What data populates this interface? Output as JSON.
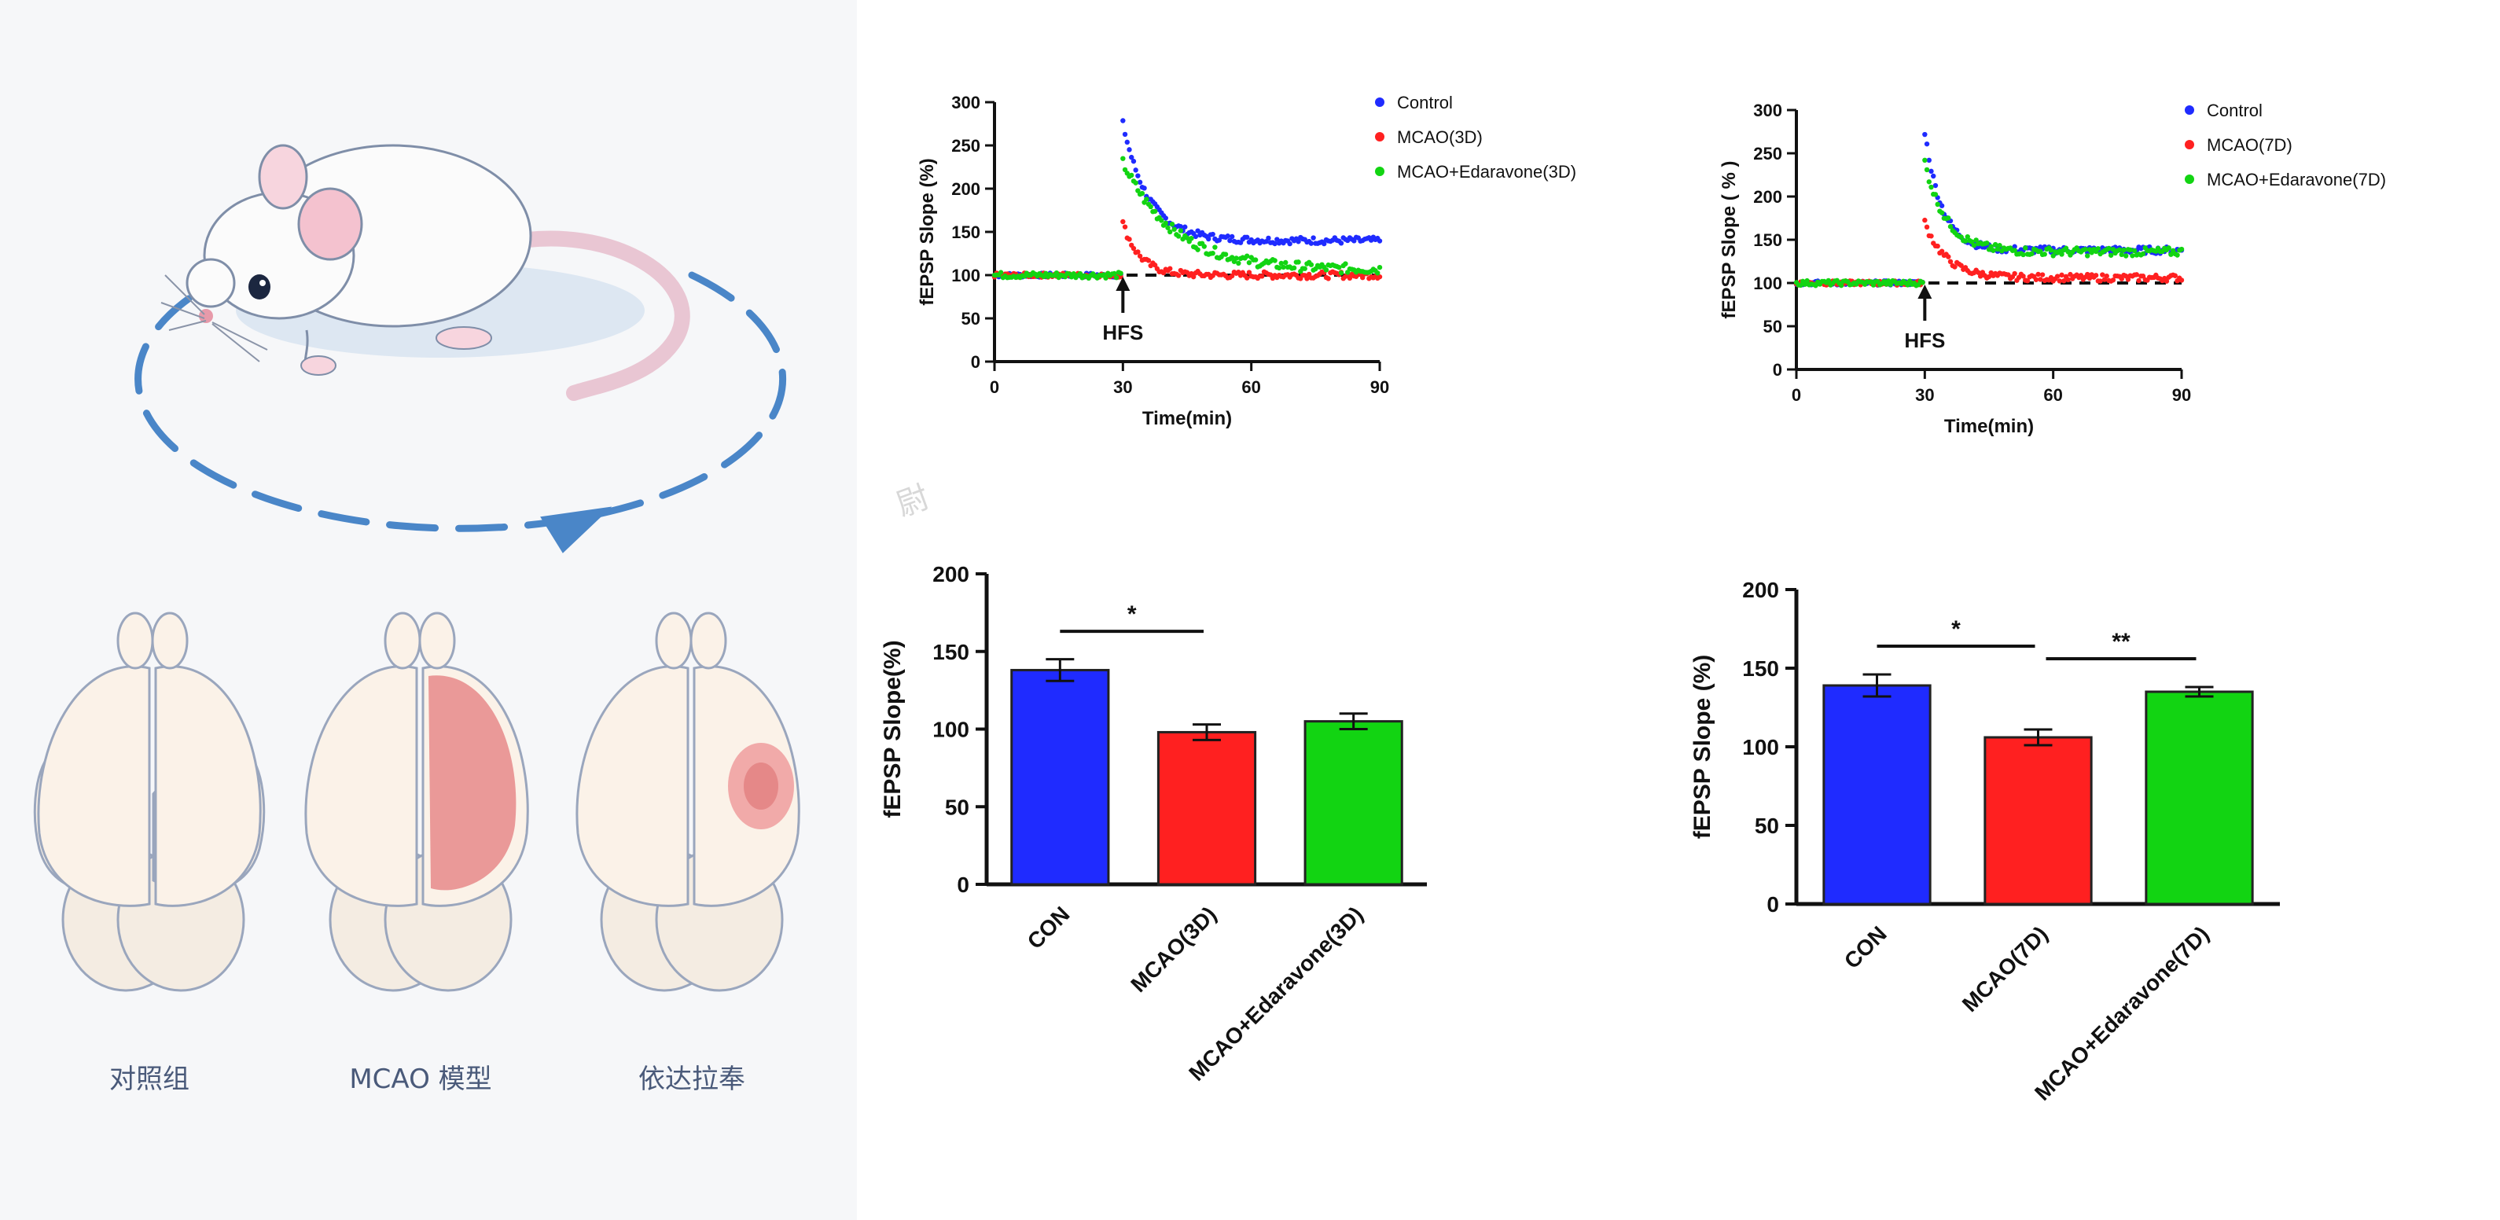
{
  "left_panel": {
    "group_labels": [
      "对照组",
      "MCAO 模型",
      "依达拉奉"
    ]
  },
  "watermark": "尉",
  "colors": {
    "blue": "#1f2bff",
    "red": "#ff2020",
    "green": "#12d412"
  },
  "chart_data": [
    {
      "id": "line3d",
      "type": "scatter",
      "xlabel": "Time(min)",
      "ylabel": "fEPSP Slope (%)",
      "xlim": [
        0,
        90
      ],
      "ylim": [
        0,
        300
      ],
      "xticks": [
        "0",
        "30",
        "60",
        "90"
      ],
      "yticks": [
        "0",
        "50",
        "100",
        "150",
        "200",
        "250",
        "300"
      ],
      "baseline": 100,
      "annotation": "HFS",
      "annotation_x": 30,
      "legend_position": "top-right",
      "series": [
        {
          "name": "Control",
          "color": "#1f2bff",
          "peak": 275,
          "plateau": 140,
          "decay": 6,
          "noise": 5
        },
        {
          "name": "MCAO(3D)",
          "color": "#ff2020",
          "peak": 160,
          "plateau": 100,
          "decay": 4,
          "noise": 5
        },
        {
          "name": "MCAO+Edaravone(3D)",
          "color": "#12d412",
          "peak": 230,
          "plateau": 106,
          "decay": 12,
          "noise": 7
        }
      ]
    },
    {
      "id": "line7d",
      "type": "scatter",
      "xlabel": "Time(min)",
      "ylabel": "fEPSP Slope ( % )",
      "xlim": [
        0,
        90
      ],
      "ylim": [
        0,
        300
      ],
      "xticks": [
        "0",
        "30",
        "60",
        "90"
      ],
      "yticks": [
        "0",
        "50",
        "100",
        "150",
        "200",
        "250",
        "300"
      ],
      "baseline": 100,
      "annotation": "HFS",
      "annotation_x": 30,
      "legend_position": "top-right",
      "series": [
        {
          "name": "Control",
          "color": "#1f2bff",
          "peak": 275,
          "plateau": 138,
          "decay": 4,
          "noise": 5
        },
        {
          "name": "MCAO(7D)",
          "color": "#ff2020",
          "peak": 170,
          "plateau": 106,
          "decay": 5,
          "noise": 5
        },
        {
          "name": "MCAO+Edaravone(7D)",
          "color": "#12d412",
          "peak": 240,
          "plateau": 136,
          "decay": 5,
          "noise": 6
        }
      ]
    },
    {
      "id": "bar3d",
      "type": "bar",
      "ylabel": "fEPSP Slope(%)",
      "ylim": [
        0,
        200
      ],
      "yticks": [
        "0",
        "50",
        "100",
        "150",
        "200"
      ],
      "categories": [
        "CON",
        "MCAO(3D)",
        "MCAO+Edaravone(3D)"
      ],
      "values": [
        138,
        98,
        105
      ],
      "errors": [
        7,
        5,
        5
      ],
      "bar_colors": [
        "#1f2bff",
        "#ff2020",
        "#12d412"
      ],
      "significance": [
        {
          "from": 0,
          "to": 1,
          "label": "*"
        }
      ]
    },
    {
      "id": "bar7d",
      "type": "bar",
      "ylabel": "fEPSP Slope (%)",
      "ylim": [
        0,
        200
      ],
      "yticks": [
        "0",
        "50",
        "100",
        "150",
        "200"
      ],
      "categories": [
        "CON",
        "MCAO(7D)",
        "MCAO+Edaravone(7D)"
      ],
      "values": [
        139,
        106,
        135
      ],
      "errors": [
        7,
        5,
        3
      ],
      "bar_colors": [
        "#1f2bff",
        "#ff2020",
        "#12d412"
      ],
      "significance": [
        {
          "from": 0,
          "to": 1,
          "label": "*"
        },
        {
          "from": 1,
          "to": 2,
          "label": "**"
        }
      ]
    }
  ]
}
